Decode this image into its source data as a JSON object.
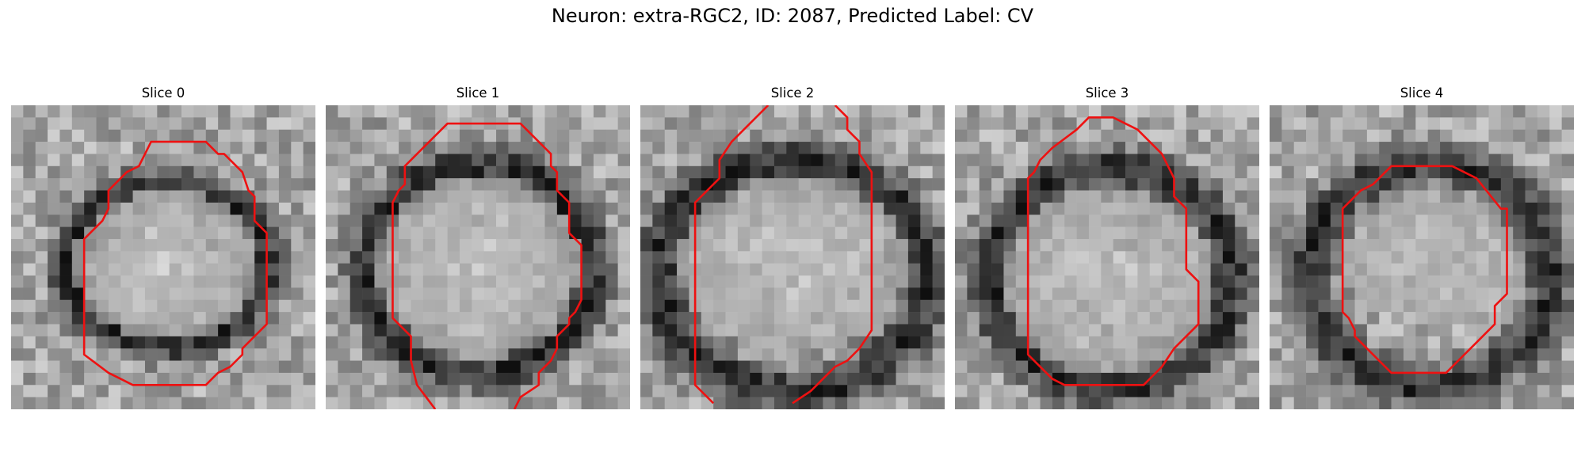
{
  "figure": {
    "title": "Neuron: extra-RGC2, ID: 2087, Predicted Label: CV",
    "contour_color": "#ee1111",
    "colormap": "grayscale",
    "image_grid": [
      25,
      25
    ]
  },
  "panels": [
    {
      "title": "Slice 0",
      "contour": [
        [
          11.5,
          3
        ],
        [
          16,
          3
        ],
        [
          17,
          4
        ],
        [
          17.5,
          4
        ],
        [
          19,
          5.5
        ],
        [
          19.5,
          7
        ],
        [
          20,
          7.5
        ],
        [
          20,
          9.5
        ],
        [
          21,
          10.5
        ],
        [
          21,
          18
        ],
        [
          20,
          19
        ],
        [
          19,
          20
        ],
        [
          19,
          20.5
        ],
        [
          18,
          21.5
        ],
        [
          17,
          22
        ],
        [
          16.5,
          22.5
        ],
        [
          16,
          23
        ],
        [
          10,
          23
        ],
        [
          9,
          22.5
        ],
        [
          8,
          22
        ],
        [
          6,
          20.5
        ],
        [
          6,
          11
        ],
        [
          7,
          10
        ],
        [
          7.5,
          9.5
        ],
        [
          8,
          8.5
        ],
        [
          8,
          7
        ],
        [
          9,
          6
        ],
        [
          9.5,
          5.5
        ],
        [
          10.5,
          5
        ],
        [
          11,
          4
        ]
      ],
      "closed": true,
      "blobs": [
        {
          "cx": 12.8,
          "cy": 13.1,
          "rx": 8.2,
          "ry": 6.8,
          "type": "ring"
        },
        {
          "cx": 12.8,
          "cy": 13.1,
          "rx": 7.6,
          "ry": 6.2,
          "type": "bright"
        }
      ]
    },
    {
      "title": "Slice 1",
      "contour": [
        [
          [
            9,
            25
          ],
          [
            7.5,
            23
          ],
          [
            7,
            21
          ],
          [
            7,
            19
          ],
          [
            6,
            18
          ],
          [
            5.5,
            17.5
          ],
          [
            5.5,
            8
          ],
          [
            6,
            7
          ],
          [
            6.5,
            6.5
          ],
          [
            6.5,
            5
          ],
          [
            7.5,
            4
          ],
          [
            8.5,
            3
          ],
          [
            10,
            1.5
          ],
          [
            16,
            1.5
          ],
          [
            17.5,
            3
          ],
          [
            18,
            3.5
          ],
          [
            18.5,
            4
          ],
          [
            18.5,
            5
          ],
          [
            19,
            5.5
          ],
          [
            19,
            7
          ],
          [
            20,
            8
          ],
          [
            20,
            10
          ],
          [
            20,
            10.5
          ],
          [
            21,
            11.5
          ],
          [
            21,
            16
          ],
          [
            20.5,
            17
          ],
          [
            20,
            17.5
          ],
          [
            20,
            18
          ],
          [
            19.5,
            18.5
          ],
          [
            19,
            19
          ],
          [
            19,
            20
          ],
          [
            18.5,
            21
          ],
          [
            17.5,
            22
          ],
          [
            17.5,
            23
          ],
          [
            16,
            24
          ],
          [
            15.5,
            25
          ]
        ]
      ],
      "closed": false,
      "blobs": [
        {
          "cx": 12.5,
          "cy": 13.5,
          "rx": 9.3,
          "ry": 8.6,
          "type": "ring"
        },
        {
          "cx": 12.6,
          "cy": 13.4,
          "rx": 8.2,
          "ry": 7.5,
          "type": "bright"
        }
      ]
    },
    {
      "title": "Slice 2",
      "contour": [
        [
          [
            10.5,
            0
          ],
          [
            7.5,
            3
          ],
          [
            6.5,
            4.5
          ],
          [
            6.5,
            6
          ],
          [
            6,
            6.5
          ],
          [
            5.5,
            7
          ],
          [
            5,
            7.5
          ],
          [
            4.5,
            8
          ],
          [
            4.5,
            23
          ],
          [
            6,
            24.5
          ]
        ],
        [
          [
            16,
            0
          ],
          [
            17,
            1
          ],
          [
            17,
            2
          ],
          [
            17.5,
            2.5
          ],
          [
            18,
            3
          ],
          [
            18,
            4
          ],
          [
            19,
            5.5
          ],
          [
            19,
            18.5
          ],
          [
            18,
            20
          ],
          [
            17.5,
            20.5
          ],
          [
            17,
            21
          ],
          [
            16,
            21.5
          ],
          [
            15,
            22.5
          ],
          [
            14.5,
            23
          ],
          [
            14,
            23.5
          ],
          [
            12.5,
            24.5
          ]
        ]
      ],
      "closed": false,
      "blobs": [
        {
          "cx": 12.5,
          "cy": 14,
          "rx": 11,
          "ry": 9.5,
          "type": "ring"
        },
        {
          "cx": 12.5,
          "cy": 13.2,
          "rx": 9.3,
          "ry": 7.3,
          "type": "bright"
        }
      ]
    },
    {
      "title": "Slice 3",
      "contour": [
        [
          11,
          1
        ],
        [
          13,
          1
        ],
        [
          14,
          1.5
        ],
        [
          15,
          2
        ],
        [
          16,
          3
        ],
        [
          17,
          4
        ],
        [
          17.5,
          5
        ],
        [
          18,
          6
        ],
        [
          18,
          7.5
        ],
        [
          19,
          8.5
        ],
        [
          19,
          13.5
        ],
        [
          20,
          14.5
        ],
        [
          20,
          15
        ],
        [
          20,
          15.5
        ],
        [
          20,
          18
        ],
        [
          19,
          19
        ],
        [
          18,
          20
        ],
        [
          17,
          21.5
        ],
        [
          16,
          22.5
        ],
        [
          15.5,
          23
        ],
        [
          12,
          23
        ],
        [
          9,
          23
        ],
        [
          8,
          22.5
        ],
        [
          6.5,
          21
        ],
        [
          6,
          20.5
        ],
        [
          6,
          13.5
        ],
        [
          6,
          6
        ],
        [
          6.5,
          5.5
        ],
        [
          7,
          4.5
        ],
        [
          8,
          3.5
        ],
        [
          10,
          2
        ]
      ],
      "closed": true,
      "blobs": [
        {
          "cx": 12.8,
          "cy": 14.2,
          "rx": 10,
          "ry": 9,
          "type": "ring"
        },
        {
          "cx": 12.6,
          "cy": 14.5,
          "rx": 8.8,
          "ry": 7.6,
          "type": "bright"
        }
      ]
    },
    {
      "title": "Slice 4",
      "contour": [
        [
          10,
          5
        ],
        [
          15,
          5
        ],
        [
          17,
          6
        ],
        [
          19,
          8.5
        ],
        [
          19.5,
          8.5
        ],
        [
          19.5,
          15
        ],
        [
          19.5,
          15.5
        ],
        [
          18.5,
          16.5
        ],
        [
          18.5,
          18
        ],
        [
          17,
          19.5
        ],
        [
          15,
          21.5
        ],
        [
          14.5,
          22
        ],
        [
          12,
          22
        ],
        [
          10,
          22
        ],
        [
          9.5,
          21.5
        ],
        [
          8,
          20
        ],
        [
          7,
          19
        ],
        [
          7,
          18.5
        ],
        [
          6.5,
          17.5
        ],
        [
          6,
          17
        ],
        [
          6,
          14.5
        ],
        [
          6,
          8.5
        ],
        [
          7.5,
          7
        ],
        [
          8.5,
          6.5
        ],
        [
          9.5,
          5.5
        ]
      ],
      "closed": true,
      "blobs": [
        {
          "cx": 13.2,
          "cy": 14,
          "rx": 9.8,
          "ry": 9.2,
          "type": "ring"
        },
        {
          "cx": 13.2,
          "cy": 12.8,
          "rx": 7.2,
          "ry": 5.4,
          "type": "bright"
        }
      ]
    }
  ]
}
